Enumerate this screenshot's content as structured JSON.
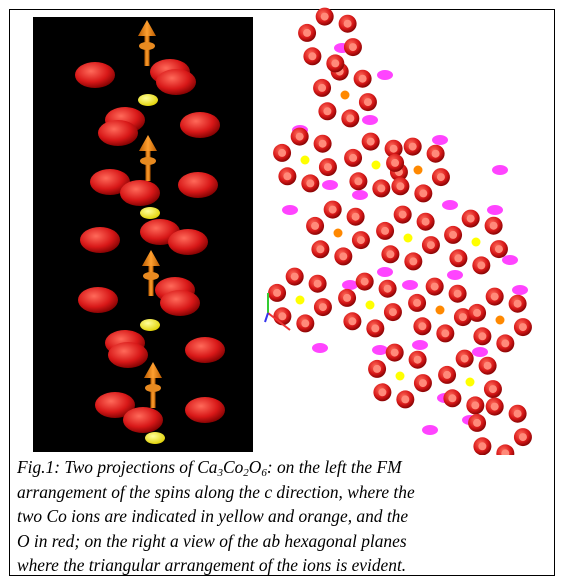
{
  "caption": {
    "line1": [
      "Fig.1: Two projections of ",
      "Ca",
      "3",
      "Co",
      "2",
      "O",
      "6",
      ": on the left the FM"
    ],
    "lines": [
      "arrangement of the spins along the c direction, where the",
      "two Co ions are indicated in yellow and orange, and the",
      "O in red; on the right a view of the ab hexagonal planes",
      "where the triangular arrangement of the ions is evident."
    ]
  }
}
